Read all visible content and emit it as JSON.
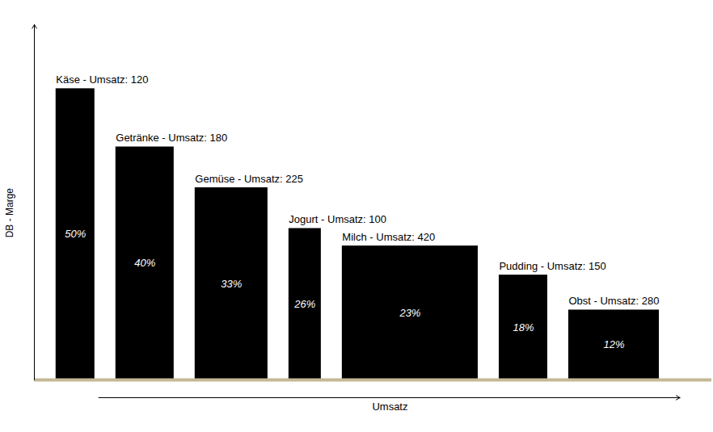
{
  "chart_data": {
    "type": "bar",
    "categories": [
      "Käse - Umsatz: 120",
      "Getränke - Umsatz: 180",
      "Gemüse - Umsatz: 225",
      "Jogurt - Umsatz: 100",
      "Milch - Umsatz: 420",
      "Pudding - Umsatz: 150",
      "Obst - Umsatz: 280"
    ],
    "values": [
      50,
      40,
      33,
      26,
      23,
      18,
      12
    ],
    "value_labels": [
      "50%",
      "40%",
      "33%",
      "26%",
      "23%",
      "18%",
      "12%"
    ],
    "umsatz": [
      120,
      180,
      225,
      100,
      420,
      150,
      280
    ],
    "xlabel": "Umsatz",
    "ylabel": "DB - Marge",
    "ylim": [
      0,
      61
    ],
    "color": "#000000",
    "data_labels": true,
    "tick_labels": false
  }
}
